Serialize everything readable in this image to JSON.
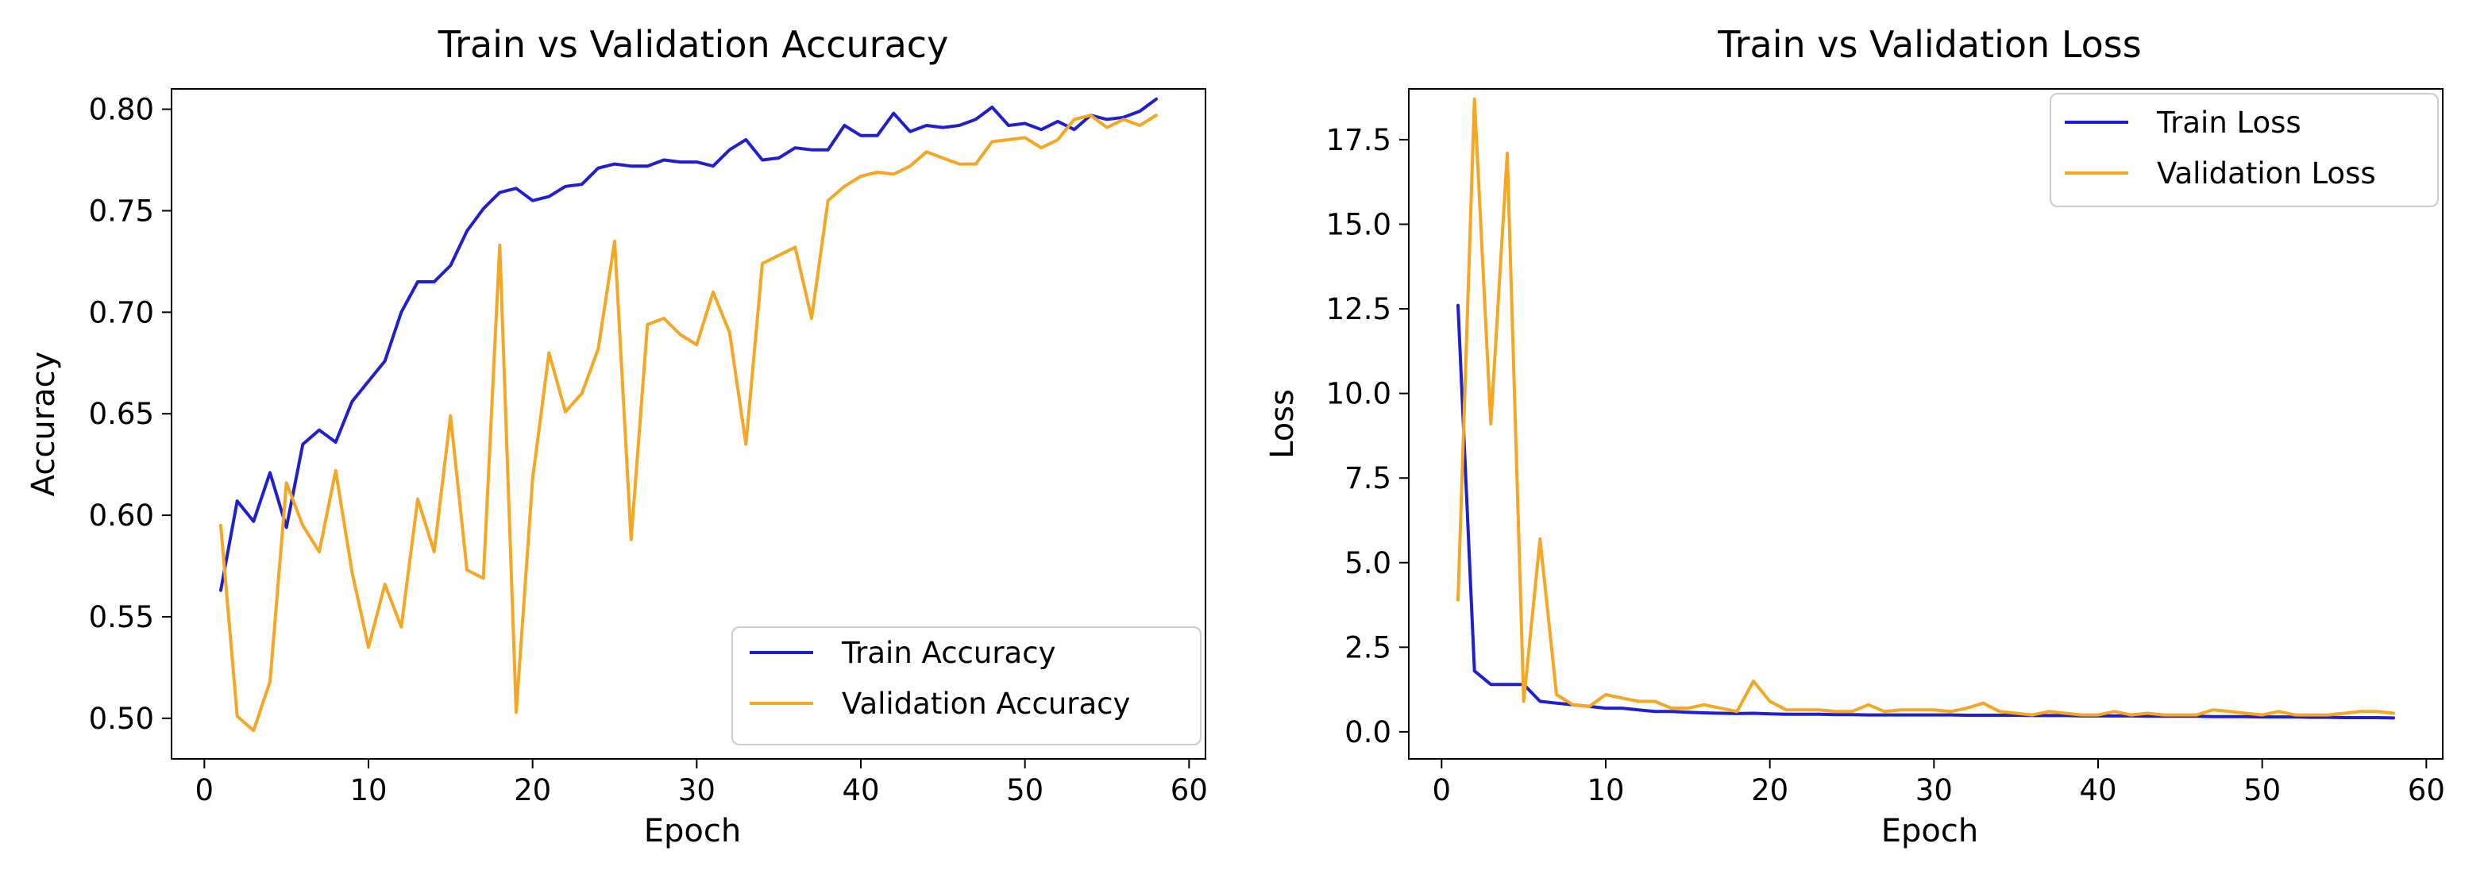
{
  "chart_data": [
    {
      "type": "line",
      "title": "Train vs Validation Accuracy",
      "xlabel": "Epoch",
      "ylabel": "Accuracy",
      "xlim": [
        -2,
        61
      ],
      "ylim": [
        0.48,
        0.81
      ],
      "xticks": [
        0,
        10,
        20,
        30,
        40,
        50,
        60
      ],
      "xtick_labels": [
        "0",
        "10",
        "20",
        "30",
        "40",
        "50",
        "60"
      ],
      "yticks": [
        0.5,
        0.55,
        0.6,
        0.65,
        0.7,
        0.75,
        0.8
      ],
      "ytick_labels": [
        "0.50",
        "0.55",
        "0.60",
        "0.65",
        "0.70",
        "0.75",
        "0.80"
      ],
      "grid": false,
      "legend_position": "lower-right",
      "x": [
        1,
        2,
        3,
        4,
        5,
        6,
        7,
        8,
        9,
        10,
        11,
        12,
        13,
        14,
        15,
        16,
        17,
        18,
        19,
        20,
        21,
        22,
        23,
        24,
        25,
        26,
        27,
        28,
        29,
        30,
        31,
        32,
        33,
        34,
        35,
        36,
        37,
        38,
        39,
        40,
        41,
        42,
        43,
        44,
        45,
        46,
        47,
        48,
        49,
        50,
        51,
        52,
        53,
        54,
        55,
        56,
        57,
        58
      ],
      "series": [
        {
          "name": "Train Accuracy",
          "color": "#1f1fd0",
          "values": [
            0.563,
            0.607,
            0.597,
            0.621,
            0.594,
            0.635,
            0.642,
            0.636,
            0.656,
            0.666,
            0.676,
            0.7,
            0.715,
            0.715,
            0.723,
            0.74,
            0.751,
            0.759,
            0.761,
            0.755,
            0.757,
            0.762,
            0.763,
            0.771,
            0.773,
            0.772,
            0.772,
            0.775,
            0.774,
            0.774,
            0.772,
            0.78,
            0.785,
            0.775,
            0.776,
            0.781,
            0.78,
            0.78,
            0.792,
            0.787,
            0.787,
            0.798,
            0.789,
            0.792,
            0.791,
            0.792,
            0.795,
            0.801,
            0.792,
            0.793,
            0.79,
            0.794,
            0.79,
            0.797,
            0.795,
            0.796,
            0.799,
            0.805
          ]
        },
        {
          "name": "Validation Accuracy",
          "color": "#f5a623",
          "values": [
            0.595,
            0.501,
            0.494,
            0.518,
            0.616,
            0.595,
            0.582,
            0.622,
            0.572,
            0.535,
            0.566,
            0.545,
            0.608,
            0.582,
            0.649,
            0.573,
            0.569,
            0.733,
            0.503,
            0.618,
            0.68,
            0.651,
            0.66,
            0.682,
            0.735,
            0.588,
            0.694,
            0.697,
            0.689,
            0.684,
            0.71,
            0.69,
            0.635,
            0.724,
            0.728,
            0.732,
            0.697,
            0.755,
            0.762,
            0.767,
            0.769,
            0.768,
            0.772,
            0.779,
            0.776,
            0.773,
            0.773,
            0.784,
            0.785,
            0.786,
            0.781,
            0.785,
            0.795,
            0.797,
            0.791,
            0.795,
            0.792,
            0.797
          ]
        }
      ]
    },
    {
      "type": "line",
      "title": "Train vs Validation Loss",
      "xlabel": "Epoch",
      "ylabel": "Loss",
      "xlim": [
        -2,
        61
      ],
      "ylim": [
        -0.8,
        19.0
      ],
      "xticks": [
        0,
        10,
        20,
        30,
        40,
        50,
        60
      ],
      "xtick_labels": [
        "0",
        "10",
        "20",
        "30",
        "40",
        "50",
        "60"
      ],
      "yticks": [
        0.0,
        2.5,
        5.0,
        7.5,
        10.0,
        12.5,
        15.0,
        17.5
      ],
      "ytick_labels": [
        "0.0",
        "2.5",
        "5.0",
        "7.5",
        "10.0",
        "12.5",
        "15.0",
        "17.5"
      ],
      "grid": false,
      "legend_position": "upper-right",
      "x": [
        1,
        2,
        3,
        4,
        5,
        6,
        7,
        8,
        9,
        10,
        11,
        12,
        13,
        14,
        15,
        16,
        17,
        18,
        19,
        20,
        21,
        22,
        23,
        24,
        25,
        26,
        27,
        28,
        29,
        30,
        31,
        32,
        33,
        34,
        35,
        36,
        37,
        38,
        39,
        40,
        41,
        42,
        43,
        44,
        45,
        46,
        47,
        48,
        49,
        50,
        51,
        52,
        53,
        54,
        55,
        56,
        57,
        58
      ],
      "series": [
        {
          "name": "Train Loss",
          "color": "#1f1fd0",
          "values": [
            12.6,
            1.8,
            1.4,
            1.4,
            1.4,
            0.9,
            0.85,
            0.8,
            0.75,
            0.7,
            0.7,
            0.65,
            0.6,
            0.6,
            0.58,
            0.56,
            0.55,
            0.54,
            0.55,
            0.53,
            0.52,
            0.52,
            0.52,
            0.51,
            0.51,
            0.5,
            0.5,
            0.5,
            0.5,
            0.5,
            0.5,
            0.49,
            0.49,
            0.49,
            0.49,
            0.48,
            0.48,
            0.48,
            0.47,
            0.47,
            0.47,
            0.47,
            0.46,
            0.46,
            0.46,
            0.46,
            0.45,
            0.45,
            0.45,
            0.44,
            0.44,
            0.44,
            0.43,
            0.43,
            0.42,
            0.42,
            0.42,
            0.41
          ]
        },
        {
          "name": "Validation Loss",
          "color": "#f5a623",
          "values": [
            3.9,
            18.7,
            9.1,
            17.1,
            0.9,
            5.7,
            1.1,
            0.8,
            0.75,
            1.1,
            1.0,
            0.9,
            0.9,
            0.7,
            0.7,
            0.8,
            0.7,
            0.6,
            1.5,
            0.9,
            0.65,
            0.65,
            0.65,
            0.6,
            0.6,
            0.8,
            0.6,
            0.65,
            0.65,
            0.65,
            0.6,
            0.7,
            0.85,
            0.6,
            0.55,
            0.5,
            0.6,
            0.55,
            0.5,
            0.5,
            0.6,
            0.5,
            0.55,
            0.5,
            0.5,
            0.5,
            0.65,
            0.6,
            0.55,
            0.5,
            0.6,
            0.5,
            0.5,
            0.5,
            0.55,
            0.6,
            0.6,
            0.55
          ]
        }
      ]
    }
  ]
}
